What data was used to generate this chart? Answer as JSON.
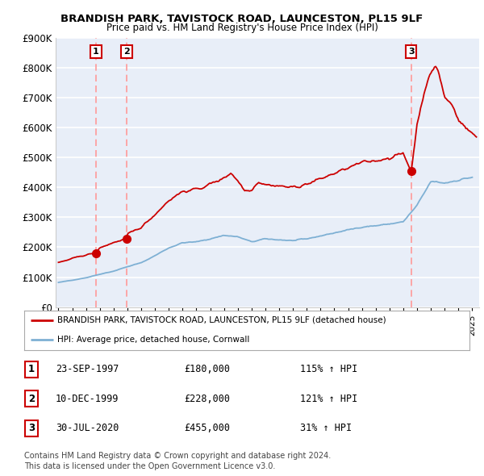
{
  "title1": "BRANDISH PARK, TAVISTOCK ROAD, LAUNCESTON, PL15 9LF",
  "title2": "Price paid vs. HM Land Registry's House Price Index (HPI)",
  "ylim": [
    0,
    900000
  ],
  "yticks": [
    0,
    100000,
    200000,
    300000,
    400000,
    500000,
    600000,
    700000,
    800000,
    900000
  ],
  "ytick_labels": [
    "£0",
    "£100K",
    "£200K",
    "£300K",
    "£400K",
    "£500K",
    "£600K",
    "£700K",
    "£800K",
    "£900K"
  ],
  "sale_dates_year": [
    1997.72,
    1999.94,
    2020.58
  ],
  "sale_prices": [
    180000,
    228000,
    455000
  ],
  "sale_labels": [
    "1",
    "2",
    "3"
  ],
  "red_line_color": "#cc0000",
  "blue_line_color": "#7eb0d4",
  "marker_color": "#cc0000",
  "dashed_line_color": "#ff9999",
  "legend_label_red": "BRANDISH PARK, TAVISTOCK ROAD, LAUNCESTON, PL15 9LF (detached house)",
  "legend_label_blue": "HPI: Average price, detached house, Cornwall",
  "table_data": [
    [
      "1",
      "23-SEP-1997",
      "£180,000",
      "115% ↑ HPI"
    ],
    [
      "2",
      "10-DEC-1999",
      "£228,000",
      "121% ↑ HPI"
    ],
    [
      "3",
      "30-JUL-2020",
      "£455,000",
      "31% ↑ HPI"
    ]
  ],
  "footer": "Contains HM Land Registry data © Crown copyright and database right 2024.\nThis data is licensed under the Open Government Licence v3.0.",
  "bg_color": "#ffffff",
  "plot_bg_color": "#e8eef8",
  "grid_color": "#ffffff",
  "xlim_left": 1994.8,
  "xlim_right": 2025.5
}
